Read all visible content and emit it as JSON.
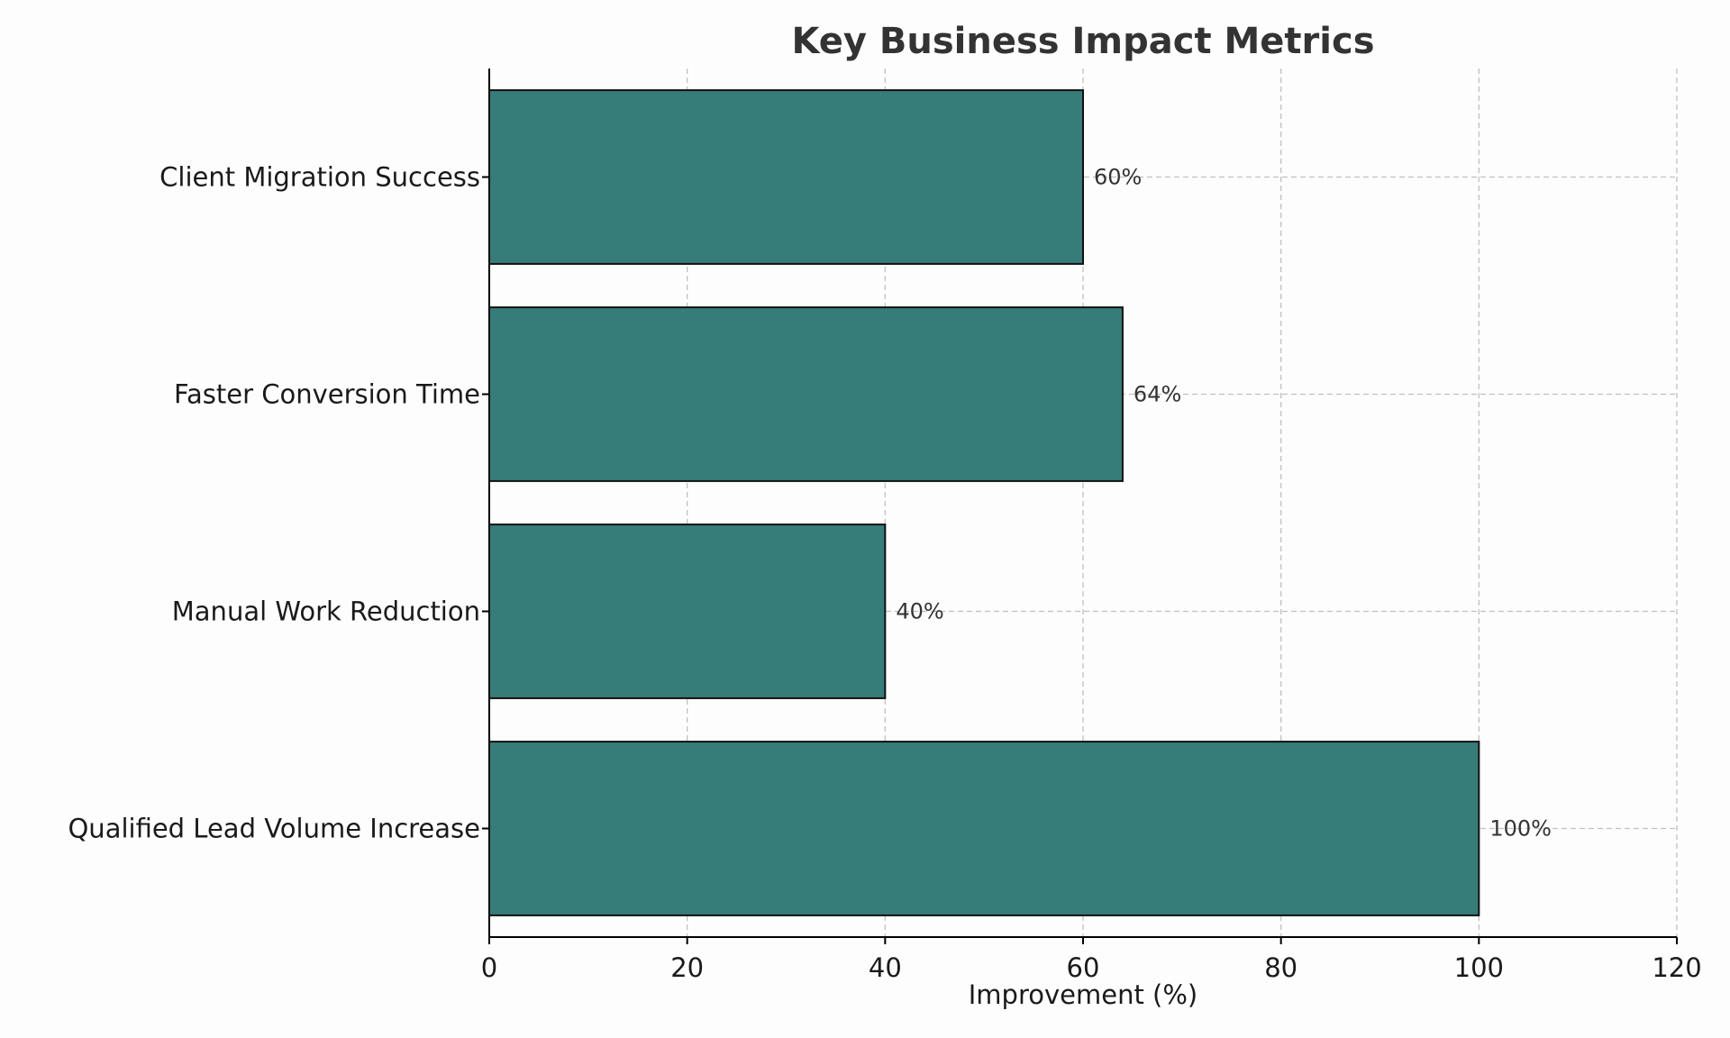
{
  "chart_data": {
    "type": "bar",
    "orientation": "horizontal",
    "title": "Key Business Impact Metrics",
    "xlabel": "Improvement (%)",
    "ylabel": "",
    "xlim": [
      0,
      120
    ],
    "xticks": [
      0,
      20,
      40,
      60,
      80,
      100,
      120
    ],
    "grid": true,
    "bar_color": "#367d7a",
    "categories": [
      "Qualified Lead Volume Increase",
      "Manual Work Reduction",
      "Faster Conversion Time",
      "Client Migration Success"
    ],
    "values": [
      100,
      40,
      64,
      60
    ],
    "data_labels": [
      "100%",
      "40%",
      "64%",
      "60%"
    ]
  }
}
